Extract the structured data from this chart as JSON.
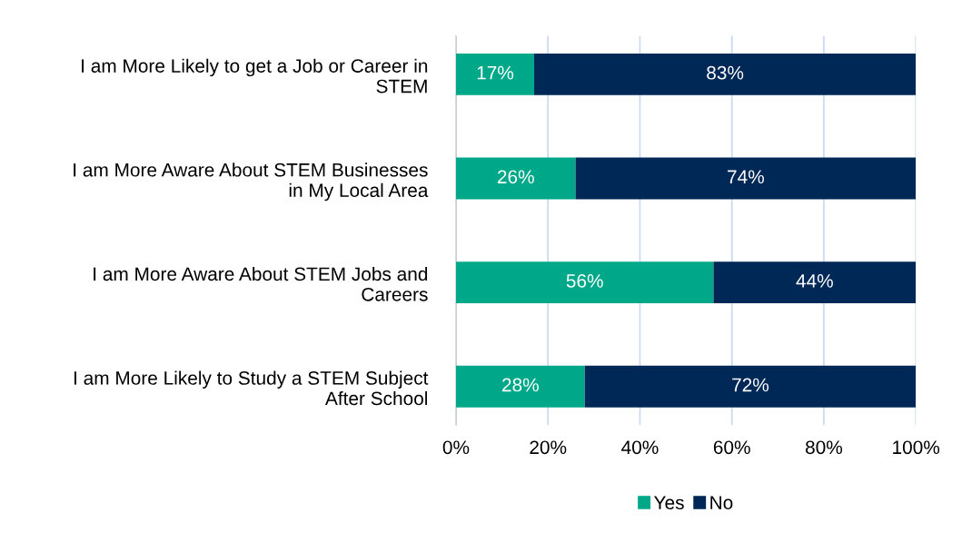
{
  "chart_data": {
    "type": "bar",
    "orientation": "horizontal",
    "stacked": true,
    "categories": [
      "I am More Likely to get a Job or Career in\nSTEM",
      "I am More Aware About STEM Businesses\nin My Local Area",
      "I am More Aware About STEM Jobs and\nCareers",
      "I am More Likely to Study a STEM Subject\nAfter School"
    ],
    "series": [
      {
        "name": "Yes",
        "color": "#00a88a",
        "values": [
          17,
          26,
          56,
          28
        ],
        "value_labels": [
          "17%",
          "26%",
          "56%",
          "28%"
        ]
      },
      {
        "name": "No",
        "color": "#002856",
        "values": [
          83,
          74,
          44,
          72
        ],
        "value_labels": [
          "83%",
          "74%",
          "44%",
          "72%"
        ]
      }
    ],
    "xlim": [
      0,
      100
    ],
    "xticks": [
      {
        "value": 0,
        "label": "0%"
      },
      {
        "value": 20,
        "label": "20%"
      },
      {
        "value": 40,
        "label": "40%"
      },
      {
        "value": 60,
        "label": "60%"
      },
      {
        "value": 80,
        "label": "80%"
      },
      {
        "value": 100,
        "label": "100%"
      }
    ],
    "grid": "x",
    "legend": "bottom"
  }
}
